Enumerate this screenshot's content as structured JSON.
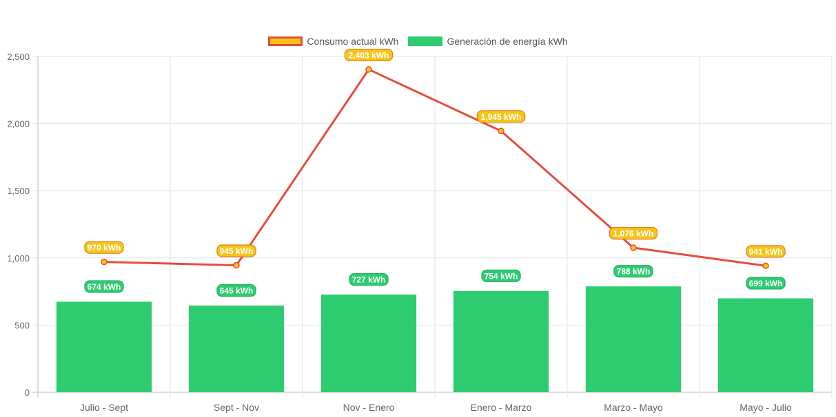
{
  "chart_data": {
    "type": "bar",
    "categories": [
      "Julio - Sept",
      "Sept - Nov",
      "Nov - Enero",
      "Enero - Marzo",
      "Marzo - Mayo",
      "Mayo - Julio"
    ],
    "series": [
      {
        "name": "Consumo actual kWh",
        "render": "line",
        "values": [
          970,
          945,
          2403,
          1945,
          1076,
          941
        ],
        "labels": [
          "970 kWh",
          "945 kWh",
          "2,403 kWh",
          "1,945 kWh",
          "1,076 kWh",
          "941 kWh"
        ],
        "color": "#e74c3c",
        "label_color": "#f5c518"
      },
      {
        "name": "Generación de energía kWh",
        "render": "bar",
        "values": [
          674,
          645,
          727,
          754,
          788,
          699
        ],
        "labels": [
          "674 kWh",
          "645 kWh",
          "727 kWh",
          "754 kWh",
          "788 kWh",
          "699 kWh"
        ],
        "color": "#2ecc71",
        "label_color": "#2ecc71"
      }
    ],
    "y_ticks": [
      "0",
      "500",
      "1,000",
      "1,500",
      "2,000",
      "2,500"
    ],
    "y_tick_values": [
      0,
      500,
      1000,
      1500,
      2000,
      2500
    ],
    "ylim": [
      0,
      2500
    ],
    "grid": true,
    "legend_position": "top",
    "title": "",
    "xlabel": "",
    "ylabel": ""
  }
}
